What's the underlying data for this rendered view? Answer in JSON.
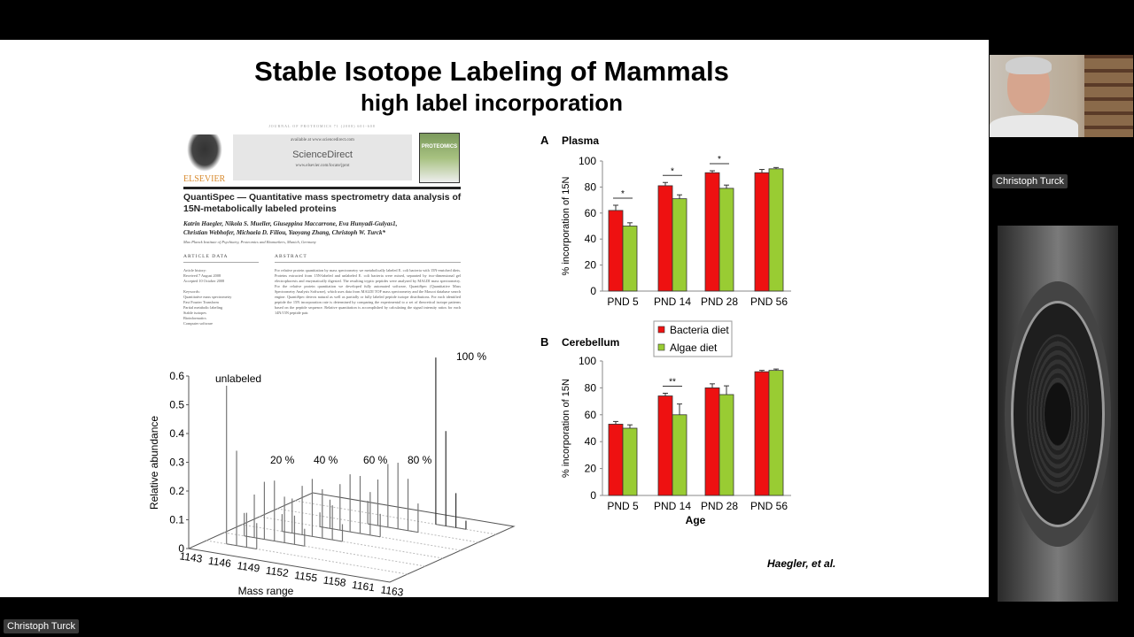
{
  "slide": {
    "title": "Stable Isotope Labeling of Mammals",
    "subtitle": "high label incorporation",
    "citation": "Haegler, et al.",
    "paper": {
      "journal_line": "JOURNAL OF PROTEOMICS 71 (2008) 601-608",
      "publisher": "ELSEVIER",
      "available_at": "available at www.sciencedirect.com",
      "sciencedirect": "ScienceDirect",
      "locate": "www.elsevier.com/locate/jprot",
      "cover_title": "PROTEOMICS",
      "title_line1": "QuantiSpec — Quantitative mass spectrometry data analysis of",
      "title_line2": "15N-metabolically labeled proteins",
      "authors_line1": "Katrin Haegler, Nikola S. Mueller, Giuseppina Maccarrone, Eva Hunyadi-Gulyas1,",
      "authors_line2": "Christian Webhofer, Michaela D. Filiou, Yaoyang Zhang, Christoph W. Turck*",
      "affiliation": "Max Planck Institute of Psychiatry, Proteomics and Biomarkers, Munich, Germany",
      "article_data_heading": "ARTICLE DATA",
      "abstract_heading": "ABSTRACT",
      "article_history": [
        "Article history:",
        "Received 7 August 2008",
        "Accepted 10 October 2008"
      ],
      "keywords": [
        "Keywords:",
        "Quantitative mass spectrometry",
        "Fast Fourier Transform",
        "Partial metabolic labeling",
        "Stable isotopes",
        "Bioinformatics",
        "Computer software"
      ],
      "abstract": "For relative protein quantitation by mass spectrometry we metabolically labeled E. coli bacteria with 15N-enriched diets. Proteins extracted from 15N-labeled and unlabeled E. coli bacteria were mixed, separated by two-dimensional gel electrophoresis and enzymatically digested. The resulting tryptic peptides were analyzed by MALDI mass spectrometry. For the relative protein quantitation we developed fully automated software, QuantiSpec (Quantitative Mass Spectrometry Analysis Software), which uses data from MALDI TOF mass spectrometry and the Mascot database search engine. QuantiSpec detects natural as well as partially or fully labeled peptide isotope distributions. For each identified peptide the 15N incorporation rate is determined by comparing the experimental to a set of theoretical isotope patterns based on the peptide sequence. Relative quantitation is accomplished by calculating the signal intensity ratios for each 14N/15N peptide pair."
    }
  },
  "chart_data": [
    {
      "type": "bar",
      "panel": "A",
      "title": "Plasma",
      "categories": [
        "PND 5",
        "PND 14",
        "PND 28",
        "PND 56"
      ],
      "series": [
        {
          "name": "Bacteria diet",
          "color": "#ee1111",
          "values": [
            62,
            81,
            91,
            91
          ],
          "errors": [
            4,
            2.5,
            1.5,
            2.5
          ]
        },
        {
          "name": "Algae diet",
          "color": "#99cc33",
          "values": [
            50,
            71,
            79,
            94
          ],
          "errors": [
            2.5,
            3,
            2.5,
            1
          ]
        }
      ],
      "significance": [
        "*",
        "*",
        "*",
        ""
      ],
      "ylabel": "% incorporation of 15N",
      "xlabel": "",
      "ylim": [
        0,
        100
      ],
      "yticks": [
        0,
        20,
        40,
        60,
        80,
        100
      ]
    },
    {
      "type": "bar",
      "panel": "B",
      "title": "Cerebellum",
      "categories": [
        "PND 5",
        "PND 14",
        "PND 28",
        "PND 56"
      ],
      "series": [
        {
          "name": "Bacteria diet",
          "color": "#ee1111",
          "values": [
            53,
            74,
            80,
            92
          ],
          "errors": [
            2,
            2,
            3,
            1
          ]
        },
        {
          "name": "Algae diet",
          "color": "#99cc33",
          "values": [
            50,
            60,
            75,
            93
          ],
          "errors": [
            2.5,
            8,
            6.5,
            1
          ]
        }
      ],
      "significance": [
        "",
        "**",
        "",
        ""
      ],
      "ylabel": "% incorporation of 15N",
      "xlabel": "Age",
      "ylim": [
        0,
        100
      ],
      "yticks": [
        0,
        20,
        40,
        60,
        80,
        100
      ],
      "legend": [
        "Bacteria diet",
        "Algae diet"
      ]
    },
    {
      "type": "bar3d",
      "ylabel": "Relative abundance",
      "xlabel": "Mass range",
      "zticks": [
        "0",
        "0.1",
        "0.2",
        "0.3",
        "0.4",
        "0.5",
        "0.6"
      ],
      "xticks": [
        "1143",
        "1146",
        "1149",
        "1152",
        "1155",
        "1158",
        "1161",
        "1163"
      ],
      "series": [
        {
          "name": "unlabeled",
          "peaks": [
            [
              1145,
              0.55
            ],
            [
              1146,
              0.33
            ],
            [
              1147,
              0.12
            ],
            [
              1148,
              0.09
            ]
          ]
        },
        {
          "name": "20 %",
          "peaks": [
            [
              1145,
              0.08
            ],
            [
              1146,
              0.15
            ],
            [
              1147,
              0.2
            ],
            [
              1148,
              0.21
            ],
            [
              1149,
              0.16
            ],
            [
              1150,
              0.1
            ],
            [
              1151,
              0.06
            ]
          ]
        },
        {
          "name": "40 %",
          "peaks": [
            [
              1147,
              0.06
            ],
            [
              1148,
              0.12
            ],
            [
              1149,
              0.17
            ],
            [
              1150,
              0.2
            ],
            [
              1151,
              0.17
            ],
            [
              1152,
              0.12
            ],
            [
              1153,
              0.06
            ]
          ]
        },
        {
          "name": "60 %",
          "peaks": [
            [
              1149,
              0.05
            ],
            [
              1150,
              0.1
            ],
            [
              1151,
              0.16
            ],
            [
              1152,
              0.2
            ],
            [
              1153,
              0.2
            ],
            [
              1154,
              0.15
            ],
            [
              1155,
              0.08
            ]
          ]
        },
        {
          "name": "80 %",
          "peaks": [
            [
              1152,
              0.08
            ],
            [
              1153,
              0.16
            ],
            [
              1154,
              0.22
            ],
            [
              1155,
              0.23
            ],
            [
              1156,
              0.18
            ],
            [
              1157,
              0.1
            ]
          ]
        },
        {
          "name": "100 %",
          "peaks": [
            [
              1157,
              0.58
            ],
            [
              1158,
              0.33
            ],
            [
              1159,
              0.12
            ],
            [
              1160,
              0.03
            ]
          ]
        }
      ]
    }
  ],
  "participants": {
    "speaker_name": "Christoph Turck",
    "self_name": "Christoph Turck"
  }
}
